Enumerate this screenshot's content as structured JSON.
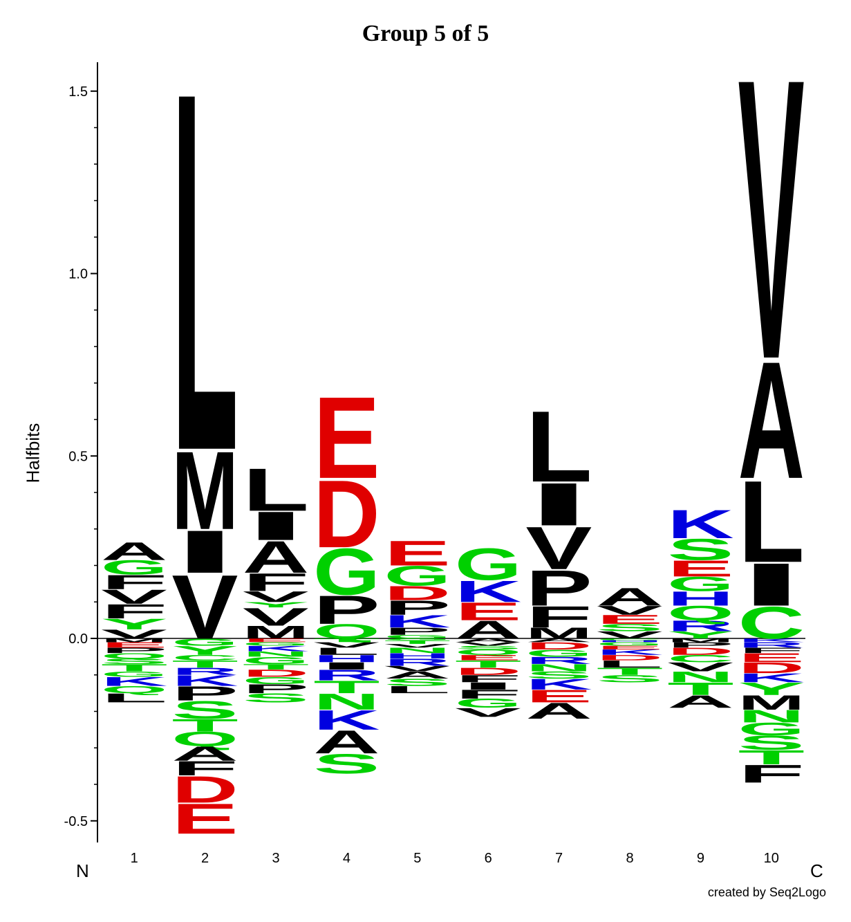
{
  "chart_data": {
    "type": "sequence-logo",
    "title": "Group 5 of 5",
    "ylabel": "Halfbits",
    "n_term": "N",
    "c_term": "C",
    "credit": "created by Seq2Logo",
    "ylim": [
      -0.57,
      1.58
    ],
    "yticks": [
      -0.5,
      0.0,
      0.5,
      1.0,
      1.5
    ],
    "ytick_labels": [
      "-0.5",
      "0.0",
      "0.5",
      "1.0",
      "1.5"
    ],
    "positions": [
      "1",
      "2",
      "3",
      "4",
      "5",
      "6",
      "7",
      "8",
      "9",
      "10"
    ],
    "colors": {
      "hydrophobic": "#000000",
      "acidic": "#e00000",
      "basic": "#0000e0",
      "polar": "#00d000"
    },
    "residues": [
      {
        "position": 1,
        "positive": [
          [
            "V",
            0.025
          ],
          [
            "Y",
            0.03
          ],
          [
            "F",
            0.04
          ],
          [
            "V",
            0.04
          ],
          [
            "F",
            0.04
          ],
          [
            "G",
            0.04
          ],
          [
            "A",
            0.05
          ]
        ],
        "negative": [
          [
            "M",
            0.01
          ],
          [
            "E",
            0.015
          ],
          [
            "P",
            0.015
          ],
          [
            "Q",
            0.015
          ],
          [
            "S",
            0.015
          ],
          [
            "T",
            0.02
          ],
          [
            "G",
            0.015
          ],
          [
            "K",
            0.025
          ],
          [
            "Q",
            0.02
          ],
          [
            "L",
            0.025
          ]
        ]
      },
      {
        "position": 2,
        "positive": [
          [
            "V",
            0.18
          ],
          [
            "I",
            0.12
          ],
          [
            "M",
            0.22
          ],
          [
            "L",
            1.01
          ]
        ],
        "negative": [
          [
            "G",
            0.02
          ],
          [
            "Y",
            0.025
          ],
          [
            "C",
            0.015
          ],
          [
            "T",
            0.02
          ],
          [
            "R",
            0.02
          ],
          [
            "K",
            0.03
          ],
          [
            "P",
            0.04
          ],
          [
            "S",
            0.05
          ],
          [
            "T",
            0.035
          ],
          [
            "Q",
            0.04
          ],
          [
            "A",
            0.04
          ],
          [
            "F",
            0.04
          ],
          [
            "D",
            0.075
          ],
          [
            "E",
            0.085
          ]
        ]
      },
      {
        "position": 3,
        "positive": [
          [
            "M",
            0.035
          ],
          [
            "V",
            0.05
          ],
          [
            "Y",
            0.015
          ],
          [
            "V",
            0.03
          ],
          [
            "F",
            0.05
          ],
          [
            "A",
            0.09
          ],
          [
            "I",
            0.08
          ],
          [
            "L",
            0.12
          ]
        ],
        "negative": [
          [
            "E",
            0.01
          ],
          [
            "G",
            0.01
          ],
          [
            "K",
            0.015
          ],
          [
            "N",
            0.015
          ],
          [
            "G",
            0.02
          ],
          [
            "T",
            0.015
          ],
          [
            "D",
            0.02
          ],
          [
            "G",
            0.02
          ],
          [
            "P",
            0.025
          ],
          [
            "S",
            0.025
          ]
        ]
      },
      {
        "position": 4,
        "positive": [
          [
            "Q",
            0.04
          ],
          [
            "P",
            0.08
          ],
          [
            "G",
            0.13
          ],
          [
            "D",
            0.19
          ],
          [
            "E",
            0.23
          ]
        ],
        "negative": [
          [
            "T",
            0.01
          ],
          [
            "V",
            0.015
          ],
          [
            "L",
            0.02
          ],
          [
            "H",
            0.02
          ],
          [
            "I",
            0.02
          ],
          [
            "R",
            0.03
          ],
          [
            "T",
            0.035
          ],
          [
            "N",
            0.045
          ],
          [
            "K",
            0.055
          ],
          [
            "A",
            0.065
          ],
          [
            "S",
            0.055
          ]
        ]
      },
      {
        "position": 5,
        "positive": [
          [
            "G",
            0.01
          ],
          [
            "P",
            0.02
          ],
          [
            "K",
            0.035
          ],
          [
            "P",
            0.04
          ],
          [
            "D",
            0.04
          ],
          [
            "G",
            0.055
          ],
          [
            "E",
            0.07
          ]
        ],
        "negative": [
          [
            "G",
            0.005
          ],
          [
            "T",
            0.01
          ],
          [
            "V",
            0.01
          ],
          [
            "N",
            0.015
          ],
          [
            "H",
            0.015
          ],
          [
            "R",
            0.02
          ],
          [
            "V",
            0.015
          ],
          [
            "A",
            0.02
          ],
          [
            "S",
            0.02
          ],
          [
            "L",
            0.02
          ]
        ]
      },
      {
        "position": 6,
        "positive": [
          [
            "A",
            0.05
          ],
          [
            "E",
            0.05
          ],
          [
            "K",
            0.06
          ],
          [
            "G",
            0.09
          ]
        ],
        "negative": [
          [
            "A",
            0.01
          ],
          [
            "V",
            0.01
          ],
          [
            "S",
            0.01
          ],
          [
            "Q",
            0.015
          ],
          [
            "E",
            0.015
          ],
          [
            "T",
            0.02
          ],
          [
            "D",
            0.02
          ],
          [
            "F",
            0.02
          ],
          [
            "I",
            0.02
          ],
          [
            "F",
            0.025
          ],
          [
            "G",
            0.025
          ],
          [
            "V",
            0.025
          ]
        ]
      },
      {
        "position": 7,
        "positive": [
          [
            "M",
            0.03
          ],
          [
            "F",
            0.06
          ],
          [
            "P",
            0.1
          ],
          [
            "V",
            0.12
          ],
          [
            "I",
            0.12
          ],
          [
            "L",
            0.2
          ]
        ],
        "negative": [
          [
            "A",
            0.01
          ],
          [
            "D",
            0.02
          ],
          [
            "G",
            0.02
          ],
          [
            "R",
            0.02
          ],
          [
            "N",
            0.02
          ],
          [
            "S",
            0.02
          ],
          [
            "K",
            0.03
          ],
          [
            "E",
            0.035
          ],
          [
            "A",
            0.045
          ]
        ]
      },
      {
        "position": 8,
        "positive": [
          [
            "V",
            0.02
          ],
          [
            "S",
            0.02
          ],
          [
            "E",
            0.025
          ],
          [
            "V",
            0.025
          ],
          [
            "A",
            0.05
          ]
        ],
        "negative": [
          [
            "C",
            0.005
          ],
          [
            "H",
            0.005
          ],
          [
            "G",
            0.01
          ],
          [
            "E",
            0.01
          ],
          [
            "K",
            0.015
          ],
          [
            "D",
            0.015
          ],
          [
            "L",
            0.02
          ],
          [
            "T",
            0.02
          ],
          [
            "S",
            0.02
          ]
        ]
      },
      {
        "position": 9,
        "positive": [
          [
            "Y",
            0.02
          ],
          [
            "R",
            0.03
          ],
          [
            "Q",
            0.04
          ],
          [
            "H",
            0.04
          ],
          [
            "G",
            0.04
          ],
          [
            "E",
            0.045
          ],
          [
            "S",
            0.06
          ],
          [
            "K",
            0.08
          ]
        ],
        "negative": [
          [
            "M",
            0.01
          ],
          [
            "P",
            0.015
          ],
          [
            "D",
            0.02
          ],
          [
            "C",
            0.02
          ],
          [
            "V",
            0.025
          ],
          [
            "N",
            0.03
          ],
          [
            "T",
            0.035
          ],
          [
            "A",
            0.035
          ]
        ]
      },
      {
        "position": 10,
        "positive": [
          [
            "C",
            0.09
          ],
          [
            "I",
            0.12
          ],
          [
            "L",
            0.23
          ],
          [
            "A",
            0.33
          ],
          [
            "V",
            0.79
          ]
        ],
        "negative": [
          [
            "K",
            0.01
          ],
          [
            "R",
            0.015
          ],
          [
            "F",
            0.015
          ],
          [
            "E",
            0.025
          ],
          [
            "D",
            0.03
          ],
          [
            "K",
            0.025
          ],
          [
            "Y",
            0.035
          ],
          [
            "M",
            0.04
          ],
          [
            "N",
            0.035
          ],
          [
            "G",
            0.035
          ],
          [
            "S",
            0.04
          ],
          [
            "T",
            0.04
          ],
          [
            "F",
            0.05
          ]
        ]
      }
    ]
  }
}
